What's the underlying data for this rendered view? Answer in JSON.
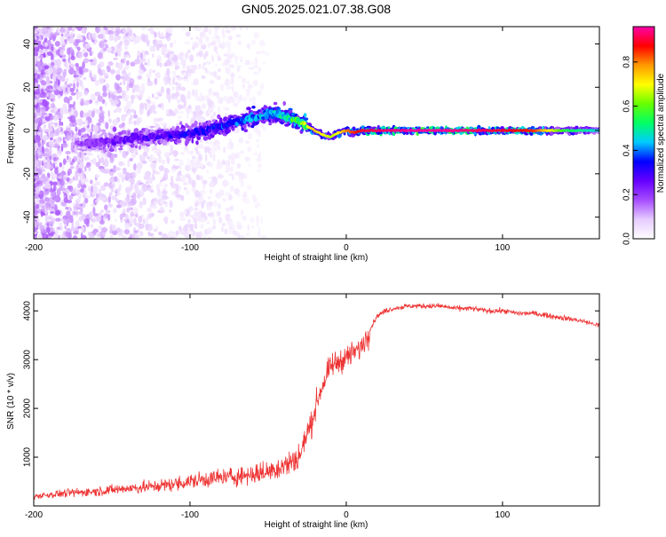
{
  "title": "GN05.2025.021.07.38.G08",
  "chart_data": [
    {
      "type": "heatmap",
      "title": "GN05.2025.021.07.38.G08",
      "xlabel": "Height of straight line (km)",
      "ylabel": "Frequency (Hz)",
      "xlim": [
        -200,
        162
      ],
      "ylim": [
        -50,
        48
      ],
      "xticks": [
        "-200",
        "-100",
        "0",
        "100"
      ],
      "xtick_values": [
        -200,
        -100,
        0,
        100
      ],
      "yticks": [
        "-40",
        "-20",
        "0",
        "20",
        "40"
      ],
      "ytick_values": [
        -40,
        -20,
        0,
        20,
        40
      ],
      "colorbar": {
        "label": "Normalized spectral amplitude",
        "range": [
          0,
          0.96
        ],
        "ticks": [
          "0.0",
          "0.2",
          "0.4",
          "0.6",
          "0.8"
        ],
        "tick_values": [
          0.0,
          0.2,
          0.4,
          0.6,
          0.8
        ],
        "colormap": [
          "#ffffff",
          "#e6ccff",
          "#a64dff",
          "#6600ff",
          "#0000ff",
          "#00ccff",
          "#00ff66",
          "#66ff00",
          "#ffff00",
          "#ff9900",
          "#ff0000",
          "#ff00aa"
        ]
      },
      "ridge": {
        "x": [
          -200,
          -170,
          -150,
          -130,
          -110,
          -90,
          -75,
          -60,
          -50,
          -40,
          -30,
          -25,
          -20,
          -15,
          -10,
          -5,
          0,
          5,
          10,
          20,
          40,
          60,
          80,
          100,
          120,
          140,
          162
        ],
        "frequency": [
          null,
          -6,
          -5,
          -3,
          -2,
          0,
          3,
          6,
          8,
          7,
          4,
          2,
          0,
          -2,
          -3,
          -1,
          0,
          -1,
          0,
          0,
          0,
          0,
          0,
          0,
          0,
          0,
          0
        ],
        "amplitude": [
          null,
          0.2,
          0.25,
          0.28,
          0.32,
          0.35,
          0.4,
          0.42,
          0.45,
          0.5,
          0.6,
          0.7,
          0.75,
          0.7,
          0.65,
          0.7,
          0.8,
          0.85,
          0.9,
          0.92,
          0.95,
          0.95,
          0.93,
          0.9,
          0.85,
          0.55,
          0.45
        ]
      },
      "grid": false,
      "legend": "colorbar-right"
    },
    {
      "type": "line",
      "xlabel": "Height of straight line (km)",
      "ylabel": "SNR (10 * v/v)",
      "xlim": [
        -200,
        162
      ],
      "ylim": [
        0,
        4350
      ],
      "xticks": [
        "-200",
        "-100",
        "0",
        "100"
      ],
      "xtick_values": [
        -200,
        -100,
        0,
        100
      ],
      "yticks": [
        "1000",
        "2000",
        "3000",
        "4000"
      ],
      "ytick_values": [
        1000,
        2000,
        3000,
        4000
      ],
      "color": "#ee3333",
      "series": [
        {
          "x": [
            -200,
            -190,
            -180,
            -170,
            -160,
            -150,
            -140,
            -130,
            -120,
            -110,
            -100,
            -90,
            -80,
            -70,
            -60,
            -50,
            -45,
            -40,
            -35,
            -30,
            -28,
            -25,
            -22,
            -20,
            -18,
            -15,
            -12,
            -10,
            -8,
            -5,
            -3,
            0,
            3,
            5,
            8,
            10,
            12,
            15,
            18,
            20,
            25,
            30,
            40,
            50,
            60,
            70,
            80,
            90,
            100,
            110,
            120,
            130,
            140,
            150,
            162
          ],
          "y": [
            200,
            230,
            260,
            280,
            300,
            330,
            360,
            380,
            410,
            450,
            500,
            550,
            580,
            610,
            650,
            700,
            780,
            820,
            900,
            1000,
            1200,
            1500,
            1700,
            2000,
            2200,
            2500,
            2700,
            2850,
            2900,
            2950,
            3000,
            3050,
            3100,
            3150,
            3200,
            3300,
            3400,
            3600,
            3800,
            3900,
            4000,
            4050,
            4100,
            4100,
            4100,
            4050,
            4050,
            4000,
            4000,
            3950,
            3950,
            3900,
            3850,
            3800,
            3700
          ]
        }
      ],
      "grid": false,
      "legend": "none"
    }
  ]
}
